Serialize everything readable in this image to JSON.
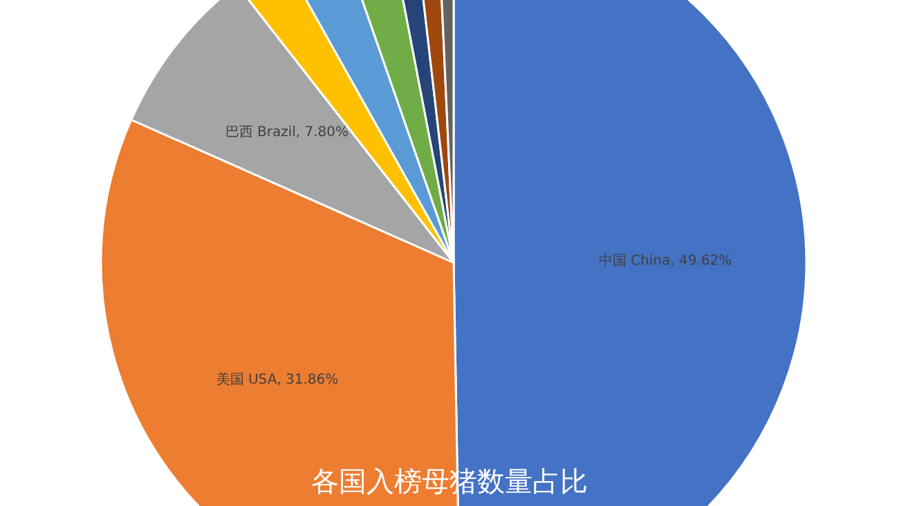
{
  "chart_data": {
    "type": "pie",
    "title": "各国入榜母猪数量占比",
    "categories": [
      "中国 China",
      "美国 USA",
      "巴西 Brazil",
      null,
      null,
      null,
      null,
      null,
      null
    ],
    "values": [
      49.62,
      31.86,
      7.8,
      2.4,
      2.8,
      2.3,
      1.2,
      1.1,
      0.72
    ],
    "value_labels": [
      "49.62%",
      "31.86%",
      "7.80%",
      null,
      null,
      null,
      null,
      null,
      null
    ],
    "colors": [
      "#4472c4",
      "#ed7d31",
      "#a5a5a5",
      "#ffc000",
      "#5b9bd5",
      "#70ad47",
      "#264478",
      "#9e480e",
      "#636363"
    ]
  }
}
